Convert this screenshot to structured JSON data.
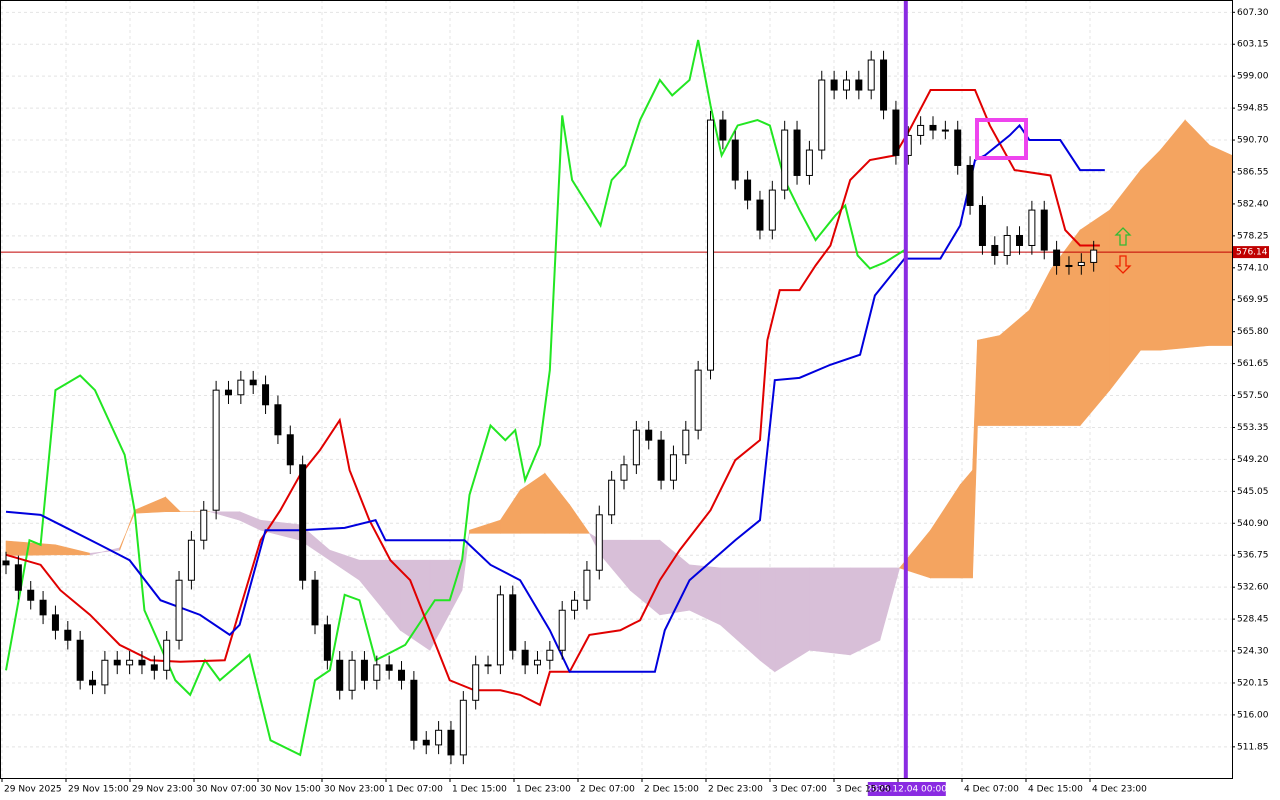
{
  "chart_data": {
    "type": "candlestick",
    "ylim": [
      507.8,
      608.9
    ],
    "yticks": [
      {
        "value": 607.3,
        "label": "607.30"
      },
      603.15,
      {
        "value": 599,
        "label": "599.00"
      },
      594.85,
      {
        "value": 590.7,
        "label": "590.70"
      },
      586.55,
      {
        "value": 582.4,
        "label": "582.40"
      },
      578.25,
      {
        "value": 574.1,
        "label": "574.10"
      },
      569.95,
      {
        "value": 565.8,
        "label": "565.80"
      },
      561.65,
      {
        "value": 557.5,
        "label": "557.50"
      },
      553.35,
      {
        "value": 549.2,
        "label": "549.20"
      },
      545.05,
      {
        "value": 540.9,
        "label": "540.90"
      },
      536.75,
      {
        "value": 532.6,
        "label": "532.60"
      },
      528.45,
      {
        "value": 524.3,
        "label": "524.30"
      },
      520.15,
      {
        "value": 516,
        "label": "516.00"
      },
      511.85
    ],
    "grid": true,
    "categories": [
      "29 Nov 2025",
      "29 Nov 15:00",
      "29 Nov 23:00",
      "30 Nov 07:00",
      "30 Nov 15:00",
      "30 Nov 23:00",
      "1 Dec 07:00",
      "1 Dec 15:00",
      "1 Dec 23:00",
      "2 Dec 07:00",
      "2 Dec 15:00",
      "2 Dec 23:00",
      "3 Dec 07:00",
      "3 Dec 15:00",
      null,
      "4 Dec 07:00",
      "4 Dec 15:00",
      "4 Dec 23:00"
    ],
    "bull_color": "#ffffff",
    "bear_color": "#000000",
    "candles": {
      "open": [
        536.0,
        535.5,
        532.2,
        530.9,
        529.0,
        527.0,
        525.7,
        520.5,
        519.9,
        523.1,
        522.5,
        523.1,
        522.5,
        521.8,
        525.7,
        533.5,
        538.7,
        542.6,
        558.2,
        557.6,
        559.5,
        558.9,
        556.3,
        552.4,
        548.5,
        533.5,
        527.7,
        523.1,
        519.2,
        523.1,
        520.5,
        522.5,
        521.8,
        520.5,
        512.7,
        512.1,
        514.0,
        510.8,
        517.9,
        522.5,
        522.5,
        531.6,
        524.4,
        522.5,
        523.1,
        524.4,
        529.6,
        530.9,
        534.8,
        542.0,
        546.5,
        548.5,
        553.0,
        551.7,
        546.5,
        549.8,
        553.0,
        560.8,
        593.3,
        590.7,
        585.5,
        582.9,
        579.0,
        584.2,
        592.0,
        586.1,
        589.4,
        598.5,
        597.2,
        598.5,
        597.2,
        601.1,
        594.6,
        588.7,
        591.3,
        592.6,
        592.0,
        592.0,
        587.4,
        582.2,
        577.0,
        575.7,
        578.3,
        577.0,
        581.6,
        576.4,
        574.4,
        574.4,
        574.8
      ],
      "high": [
        537.2,
        536.7,
        533.4,
        532.1,
        530.2,
        528.2,
        526.9,
        521.7,
        524.3,
        524.3,
        524.3,
        524.3,
        523.7,
        526.9,
        534.7,
        539.9,
        543.8,
        559.4,
        559.4,
        560.7,
        560.7,
        560.1,
        557.5,
        553.6,
        549.7,
        534.7,
        528.9,
        524.3,
        524.3,
        524.3,
        523.7,
        523.7,
        523.0,
        521.7,
        513.9,
        515.2,
        515.2,
        519.1,
        523.7,
        523.7,
        532.8,
        532.8,
        525.6,
        524.3,
        525.6,
        530.8,
        532.1,
        536.0,
        543.2,
        547.7,
        549.7,
        554.2,
        554.2,
        552.9,
        551.0,
        554.2,
        562.0,
        594.5,
        594.5,
        591.9,
        586.7,
        584.1,
        585.4,
        593.2,
        593.2,
        590.6,
        599.7,
        599.7,
        599.7,
        599.7,
        602.3,
        602.3,
        595.8,
        592.5,
        593.8,
        593.8,
        593.2,
        593.2,
        588.6,
        583.4,
        578.2,
        579.5,
        579.5,
        582.8,
        582.8,
        577.6,
        575.6,
        576.0,
        577.6
      ],
      "low": [
        534.3,
        531.0,
        529.7,
        527.8,
        525.8,
        524.5,
        519.3,
        518.7,
        518.7,
        521.3,
        521.3,
        521.3,
        520.6,
        520.6,
        524.5,
        532.3,
        537.5,
        541.4,
        556.4,
        556.4,
        557.7,
        555.1,
        551.2,
        547.3,
        532.3,
        526.5,
        521.9,
        518.0,
        518.0,
        519.3,
        519.3,
        520.6,
        519.3,
        511.5,
        510.9,
        510.9,
        509.6,
        509.6,
        516.7,
        521.3,
        521.3,
        523.2,
        521.3,
        521.3,
        521.9,
        523.2,
        528.4,
        529.7,
        533.6,
        540.8,
        545.3,
        547.3,
        550.5,
        545.3,
        545.3,
        548.6,
        551.8,
        559.6,
        589.5,
        584.3,
        581.7,
        577.8,
        577.8,
        583.0,
        584.9,
        584.9,
        588.2,
        596.0,
        596.0,
        596.0,
        596.0,
        593.4,
        587.5,
        587.5,
        590.1,
        590.8,
        590.8,
        586.2,
        581.0,
        575.8,
        574.5,
        574.5,
        575.8,
        575.8,
        575.2,
        573.2,
        573.2,
        573.2,
        573.6
      ],
      "close": [
        535.5,
        532.2,
        530.9,
        529.0,
        527.0,
        525.7,
        520.5,
        519.9,
        523.1,
        522.5,
        523.1,
        522.5,
        521.8,
        525.7,
        533.5,
        538.7,
        542.6,
        558.2,
        557.6,
        559.5,
        558.9,
        556.3,
        552.4,
        548.5,
        533.5,
        527.7,
        523.1,
        519.2,
        523.1,
        520.5,
        522.5,
        521.8,
        520.5,
        512.7,
        512.1,
        514.0,
        510.8,
        517.9,
        522.5,
        522.5,
        531.6,
        524.4,
        522.5,
        523.1,
        524.4,
        529.6,
        530.9,
        534.8,
        542.0,
        546.5,
        548.5,
        553.0,
        551.7,
        546.5,
        549.8,
        553.0,
        560.8,
        593.3,
        590.7,
        585.5,
        582.9,
        579.0,
        584.2,
        592.0,
        586.1,
        589.4,
        598.5,
        597.2,
        598.5,
        597.2,
        601.1,
        594.6,
        588.7,
        591.3,
        592.6,
        592.0,
        592.0,
        587.4,
        582.2,
        577.0,
        575.7,
        578.3,
        577.0,
        581.6,
        576.4,
        574.4,
        574.4,
        574.8,
        576.4
      ]
    },
    "cloud": {
      "bull_color": "#f4a460",
      "bear_color": "#d8bfd8",
      "x": [
        0,
        4.0,
        6.8,
        9.2,
        10.4,
        12.9,
        14.1,
        16.5,
        18.9,
        20.6,
        23.8,
        26.2,
        28.6,
        31.9,
        34.3,
        36.9,
        37.5,
        40.0,
        41.6,
        43.6,
        45.6,
        47.2,
        48.1,
        50.5,
        52.9,
        55.3,
        57.8,
        61.0,
        62.2,
        65.0,
        68.3,
        70.7,
        72.3,
        74.8,
        77.2,
        78.2,
        78.6,
        80.4,
        82.8,
        84.5,
        86.9,
        89.3,
        91.8,
        93.4,
        95.4,
        97.4,
        99.2
      ],
      "span_a": [
        538.6,
        538.1,
        537.0,
        537.4,
        542.6,
        544.3,
        542.4,
        542.4,
        541.3,
        540.0,
        538.7,
        536.1,
        533.5,
        527.0,
        524.4,
        532.2,
        540.0,
        541.3,
        545.2,
        547.4,
        543.3,
        539.6,
        536.8,
        532.2,
        529.0,
        529.6,
        527.7,
        523.1,
        521.6,
        524.4,
        523.8,
        525.7,
        535.1,
        540.0,
        545.9,
        547.8,
        564.7,
        565.3,
        568.6,
        573.8,
        579.0,
        581.6,
        586.8,
        589.4,
        593.3,
        590.0,
        588.7
      ],
      "span_b": [
        536.7,
        536.8,
        536.8,
        537.7,
        542.2,
        542.4,
        542.4,
        542.4,
        542.4,
        541.3,
        540.7,
        537.4,
        536.1,
        536.1,
        536.1,
        536.1,
        539.6,
        539.6,
        539.6,
        539.6,
        539.6,
        539.6,
        538.7,
        538.7,
        538.7,
        535.5,
        535.1,
        535.1,
        535.1,
        535.1,
        535.1,
        535.1,
        535.1,
        533.8,
        533.8,
        533.8,
        553.6,
        553.6,
        553.6,
        553.6,
        553.6,
        558.2,
        563.4,
        563.4,
        563.7,
        564.0,
        564.0
      ]
    },
    "lines": [
      {
        "color": "#22e622",
        "x": [
          0,
          1.9,
          2.8,
          4.0,
          6.0,
          7.2,
          9.6,
          10.4,
          11.2,
          13.7,
          14.9,
          16.1,
          17.3,
          19.7,
          21.4,
          23.8,
          25.0,
          26.2,
          27.4,
          28.6,
          29.9,
          32.3,
          34.7,
          35.9,
          36.9,
          37.5,
          39.2,
          40.4,
          41.2,
          42.0,
          43.2,
          44.0,
          45.0,
          45.8,
          48.1,
          49.0,
          50.1,
          51.3,
          52.9,
          53.9,
          55.3,
          56.0,
          57.0,
          57.9,
          59.2,
          60.8,
          61.8,
          63.0,
          64.2,
          65.5,
          67.1,
          67.9,
          68.9,
          69.9,
          71.1,
          72.7
        ],
        "values": [
          521.8,
          538.7,
          538.1,
          558.2,
          560.1,
          558.2,
          549.8,
          542.6,
          529.6,
          520.5,
          518.6,
          523.1,
          520.5,
          523.8,
          512.7,
          510.8,
          520.5,
          521.8,
          531.6,
          530.9,
          523.1,
          525.1,
          530.9,
          530.9,
          536.1,
          544.6,
          553.6,
          551.7,
          553.0,
          546.5,
          551.1,
          560.8,
          593.9,
          585.5,
          579.6,
          585.5,
          587.4,
          593.3,
          598.5,
          596.5,
          598.5,
          603.7,
          595.2,
          588.7,
          592.6,
          593.3,
          592.6,
          585.5,
          581.6,
          577.7,
          580.9,
          582.2,
          575.7,
          574.0,
          574.8,
          576.4
        ]
      },
      {
        "color": "#e00000",
        "x": [
          0,
          2.8,
          4.4,
          6.8,
          9.2,
          11.7,
          14.1,
          17.7,
          18.9,
          20.6,
          22.2,
          23.8,
          25.4,
          27.0,
          27.8,
          29.4,
          31.1,
          32.7,
          34.3,
          35.9,
          37.9,
          40.0,
          41.6,
          43.2,
          44.0,
          45.6,
          47.2,
          49.7,
          51.3,
          52.9,
          54.5,
          57.0,
          59.0,
          61.0,
          61.6,
          62.6,
          64.2,
          65.5,
          66.7,
          68.3,
          69.9,
          71.9,
          73.1,
          74.8,
          78.4,
          79.6,
          81.6,
          84.5,
          85.7,
          86.9,
          88.5
        ],
        "values": [
          536.8,
          535.5,
          532.2,
          529.0,
          525.1,
          523.1,
          522.9,
          523.1,
          529.6,
          538.7,
          542.6,
          547.2,
          550.4,
          554.3,
          547.8,
          541.3,
          536.1,
          533.5,
          527.0,
          520.5,
          519.2,
          519.2,
          518.6,
          517.3,
          521.6,
          521.6,
          526.4,
          527.0,
          528.3,
          533.5,
          537.4,
          542.6,
          549.1,
          551.7,
          564.7,
          571.2,
          571.2,
          574.4,
          577.0,
          585.5,
          588.1,
          588.7,
          592.0,
          597.2,
          597.2,
          592.6,
          586.8,
          586.1,
          579.0,
          577.0,
          577.0
        ]
      },
      {
        "color": "#0000dd",
        "x": [
          0,
          2.8,
          4.4,
          7.6,
          10.0,
          12.5,
          15.7,
          18.1,
          18.9,
          21.0,
          23.8,
          27.4,
          29.9,
          30.7,
          37.1,
          39.2,
          41.6,
          44.0,
          45.6,
          52.5,
          53.3,
          55.3,
          59.0,
          61.0,
          62.2,
          64.2,
          66.7,
          69.1,
          70.3,
          72.7,
          75.6,
          77.2,
          78.4,
          79.2,
          81.2,
          82.0,
          82.8,
          85.3,
          86.9,
          88.9
        ],
        "values": [
          542.4,
          542.0,
          540.7,
          538.1,
          536.1,
          530.9,
          529.0,
          526.4,
          527.7,
          540.0,
          540.0,
          540.3,
          541.3,
          538.7,
          538.7,
          535.5,
          533.5,
          527.0,
          521.6,
          521.6,
          527.0,
          533.5,
          538.7,
          541.3,
          559.5,
          559.8,
          561.5,
          562.8,
          570.5,
          575.3,
          575.3,
          579.6,
          588.1,
          588.7,
          591.3,
          592.6,
          590.7,
          590.7,
          586.8,
          586.8
        ]
      }
    ],
    "price_line": {
      "value": 576.14,
      "color": "#c00000"
    },
    "vline": {
      "x": 72.8,
      "label": "2025.12.04 00:00",
      "color": "#8a2be2"
    }
  }
}
